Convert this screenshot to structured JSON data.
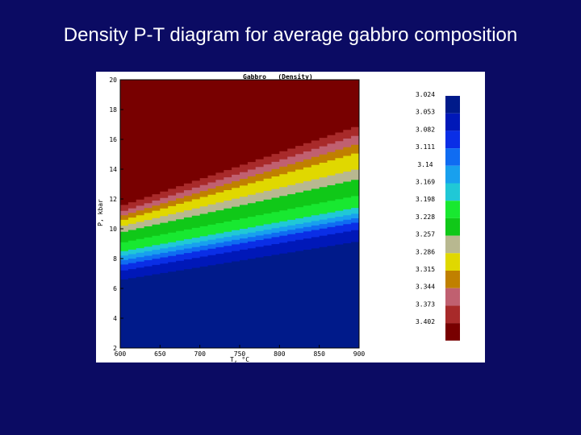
{
  "slide": {
    "title": "Density P-T diagram for average gabbro composition"
  },
  "chart_data": {
    "type": "heatmap",
    "title": "Gabbro   (Density)",
    "xlabel": "T, °C",
    "ylabel": "P, kbar",
    "xlim": [
      600,
      900
    ],
    "ylim": [
      2,
      20
    ],
    "x_ticks": [
      "600",
      "650",
      "700",
      "750",
      "800",
      "850",
      "900"
    ],
    "y_ticks": [
      "2",
      "4",
      "6",
      "8",
      "10",
      "12",
      "14",
      "16",
      "18",
      "20"
    ],
    "colorbar": {
      "labels": [
        "3.024",
        "3.053",
        "3.082",
        "3.111",
        "3.14",
        "3.169",
        "3.198",
        "3.228",
        "3.257",
        "3.286",
        "3.315",
        "3.344",
        "3.373",
        "3.402"
      ],
      "colors": [
        "#001a8a",
        "#0018b8",
        "#0a2ee6",
        "#0f6cf2",
        "#18a0ee",
        "#20c8d6",
        "#18e830",
        "#10c818",
        "#b8b890",
        "#e0d800",
        "#c08000",
        "#c06070",
        "#a82a2a",
        "#780000"
      ]
    },
    "bands": [
      {
        "density": "3.024",
        "color": "#001a8a",
        "p_at_600": 2.0,
        "p_at_900": 2.0
      },
      {
        "density": "3.053",
        "color": "#0018b8",
        "p_at_600": 6.6,
        "p_at_900": 9.2
      },
      {
        "density": "3.082",
        "color": "#0a2ee6",
        "p_at_600": 7.2,
        "p_at_900": 10.0
      },
      {
        "density": "3.111",
        "color": "#0f6cf2",
        "p_at_600": 7.6,
        "p_at_900": 10.5
      },
      {
        "density": "3.14",
        "color": "#18a0ee",
        "p_at_600": 7.9,
        "p_at_900": 10.8
      },
      {
        "density": "3.169",
        "color": "#20c8d6",
        "p_at_600": 8.2,
        "p_at_900": 11.1
      },
      {
        "density": "3.198",
        "color": "#18e830",
        "p_at_600": 8.5,
        "p_at_900": 11.5
      },
      {
        "density": "3.228",
        "color": "#10c818",
        "p_at_600": 9.1,
        "p_at_900": 12.3
      },
      {
        "density": "3.257",
        "color": "#b8b890",
        "p_at_600": 9.8,
        "p_at_900": 13.4
      },
      {
        "density": "3.286",
        "color": "#e0d800",
        "p_at_600": 10.2,
        "p_at_900": 14.1
      },
      {
        "density": "3.315",
        "color": "#c08000",
        "p_at_600": 10.6,
        "p_at_900": 15.2
      },
      {
        "density": "3.344",
        "color": "#c06070",
        "p_at_600": 10.9,
        "p_at_900": 15.8
      },
      {
        "density": "3.373",
        "color": "#a82a2a",
        "p_at_600": 11.2,
        "p_at_900": 16.4
      },
      {
        "density": "3.402",
        "color": "#780000",
        "p_at_600": 11.6,
        "p_at_900": 17.0
      }
    ]
  }
}
